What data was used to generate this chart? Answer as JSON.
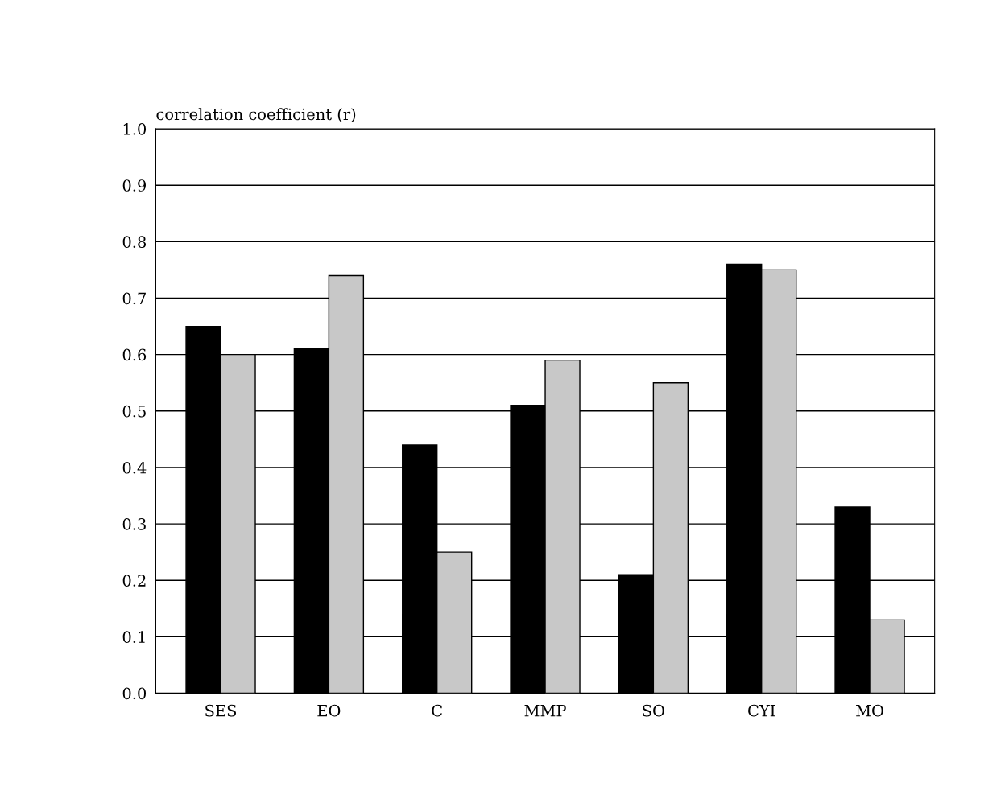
{
  "chart_data": {
    "type": "bar",
    "ylabel": "correlation coefficient (r)",
    "categories": [
      "SES",
      "EO",
      "C",
      "MMP",
      "SO",
      "CYI",
      "MO"
    ],
    "series": [
      {
        "color": "#000000",
        "values": [
          0.65,
          0.61,
          0.44,
          0.51,
          0.21,
          0.76,
          0.33
        ]
      },
      {
        "color": "#c8c8c8",
        "values": [
          0.6,
          0.74,
          0.25,
          0.59,
          0.55,
          0.75,
          0.13
        ]
      }
    ],
    "ylim": [
      0,
      1
    ],
    "yticks": [
      {
        "value": 0,
        "label": "0.0"
      },
      {
        "value": 0.1,
        "label": "0.1"
      },
      {
        "value": 0.2,
        "label": "0.2"
      },
      {
        "value": 0.3,
        "label": "0.3"
      },
      {
        "value": 0.4,
        "label": "0.4"
      },
      {
        "value": 0.5,
        "label": "0.5"
      },
      {
        "value": 0.6,
        "label": "0.6"
      },
      {
        "value": 0.7,
        "label": "0.7"
      },
      {
        "value": 0.8,
        "label": "0.8"
      },
      {
        "value": 0.9,
        "label": "0.9"
      },
      {
        "value": 1,
        "label": "1.0"
      }
    ],
    "grid": "y"
  }
}
